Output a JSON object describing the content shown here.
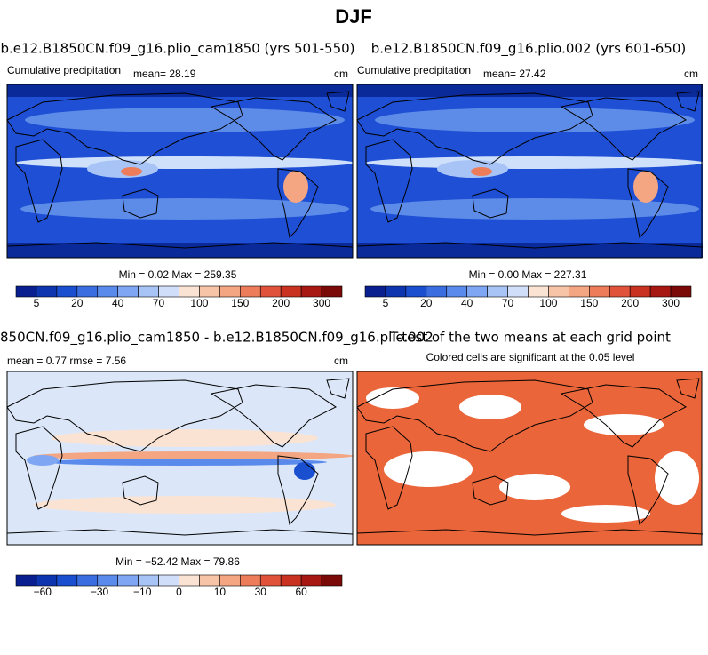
{
  "title": "DJF",
  "colormap": [
    "#0a1f8f",
    "#0d35b0",
    "#1a4fd0",
    "#3a6ee0",
    "#5a8aeb",
    "#7fa6f2",
    "#a8c4f7",
    "#d0def9",
    "#fbe3d4",
    "#f8c4a8",
    "#f4a582",
    "#ec7c5a",
    "#e0533a",
    "#c93220",
    "#a81812",
    "#7a0a08"
  ],
  "panels": [
    {
      "title": "b.e12.B1850CN.f09_g16.plio_cam1850 (yrs 501-550)",
      "left_label": "Cumulative precipitation",
      "center_label": "mean=  28.19",
      "units": "cm",
      "stats": "Min =   0.02 Max = 259.35",
      "colorbar_labels": [
        "5",
        "20",
        "40",
        "70",
        "100",
        "150",
        "200",
        "300"
      ]
    },
    {
      "title": "b.e12.B1850CN.f09_g16.plio.002 (yrs 601-650)",
      "left_label": "Cumulative precipitation",
      "center_label": "mean=  27.42",
      "units": "cm",
      "stats": "Min =   0.00 Max = 227.31",
      "colorbar_labels": [
        "5",
        "20",
        "40",
        "70",
        "100",
        "150",
        "200",
        "300"
      ]
    },
    {
      "title": "850CN.f09_g16.plio_cam1850 - b.e12.B1850CN.f09_g16.plio.002",
      "left_label": "mean =   0.77     rmse =   7.56",
      "units": "cm",
      "stats": "Min = −52.42 Max =  79.86",
      "colorbar_labels": [
        "−60",
        "−30",
        "−10",
        "0",
        "10",
        "30",
        "60"
      ]
    },
    {
      "title": "T-test of the two means at each grid point",
      "subtitle": "Colored cells are significant at the 0.05 level"
    }
  ]
}
